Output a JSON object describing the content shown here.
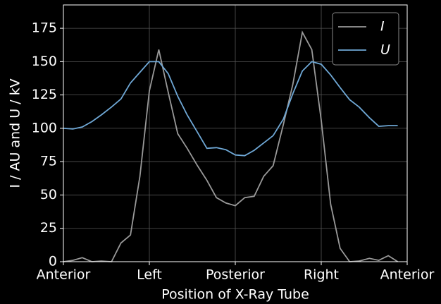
{
  "chart_data": {
    "type": "line",
    "xlabel": "Position of X-Ray Tube",
    "ylabel": "I / AU and U / kV",
    "x": [
      0,
      0.11,
      0.22,
      0.33,
      0.44,
      0.56,
      0.67,
      0.78,
      0.89,
      1,
      1.11,
      1.22,
      1.33,
      1.44,
      1.56,
      1.67,
      1.78,
      1.89,
      2,
      2.11,
      2.22,
      2.33,
      2.44,
      2.56,
      2.67,
      2.78,
      2.89,
      3,
      3.11,
      3.22,
      3.33,
      3.44,
      3.56,
      3.67,
      3.78,
      3.89
    ],
    "series": [
      {
        "name": "I",
        "color": "#999999",
        "values": [
          0,
          1,
          3,
          0,
          0.5,
          0,
          14,
          20,
          64,
          128,
          159,
          127,
          96,
          85,
          72,
          61,
          48,
          44,
          42,
          48,
          49,
          64,
          72,
          103,
          133,
          172,
          159,
          106,
          43,
          10,
          0,
          0.5,
          2.5,
          1,
          4.5,
          0
        ]
      },
      {
        "name": "U",
        "color": "#6fa8d6",
        "values": [
          100,
          99.5,
          101,
          105,
          110,
          116,
          122,
          134,
          142,
          150,
          150,
          141,
          124,
          110,
          97,
          85,
          85.5,
          84,
          80,
          79.5,
          83.5,
          89,
          94.5,
          107,
          126,
          143,
          150,
          148,
          140,
          130.5,
          121.5,
          116,
          108,
          101.5,
          102,
          102
        ]
      }
    ],
    "xlim": [
      0,
      4
    ],
    "xticks": [
      {
        "value": 0,
        "label": "Anterior"
      },
      {
        "value": 1,
        "label": "Left"
      },
      {
        "value": 2,
        "label": "Posterior"
      },
      {
        "value": 3,
        "label": "Right"
      },
      {
        "value": 4,
        "label": "Anterior"
      }
    ],
    "ylim": [
      0,
      192.5
    ],
    "yticks": [
      0,
      25,
      50,
      75,
      100,
      125,
      150,
      175
    ],
    "grid": true,
    "legend": "upper right"
  }
}
